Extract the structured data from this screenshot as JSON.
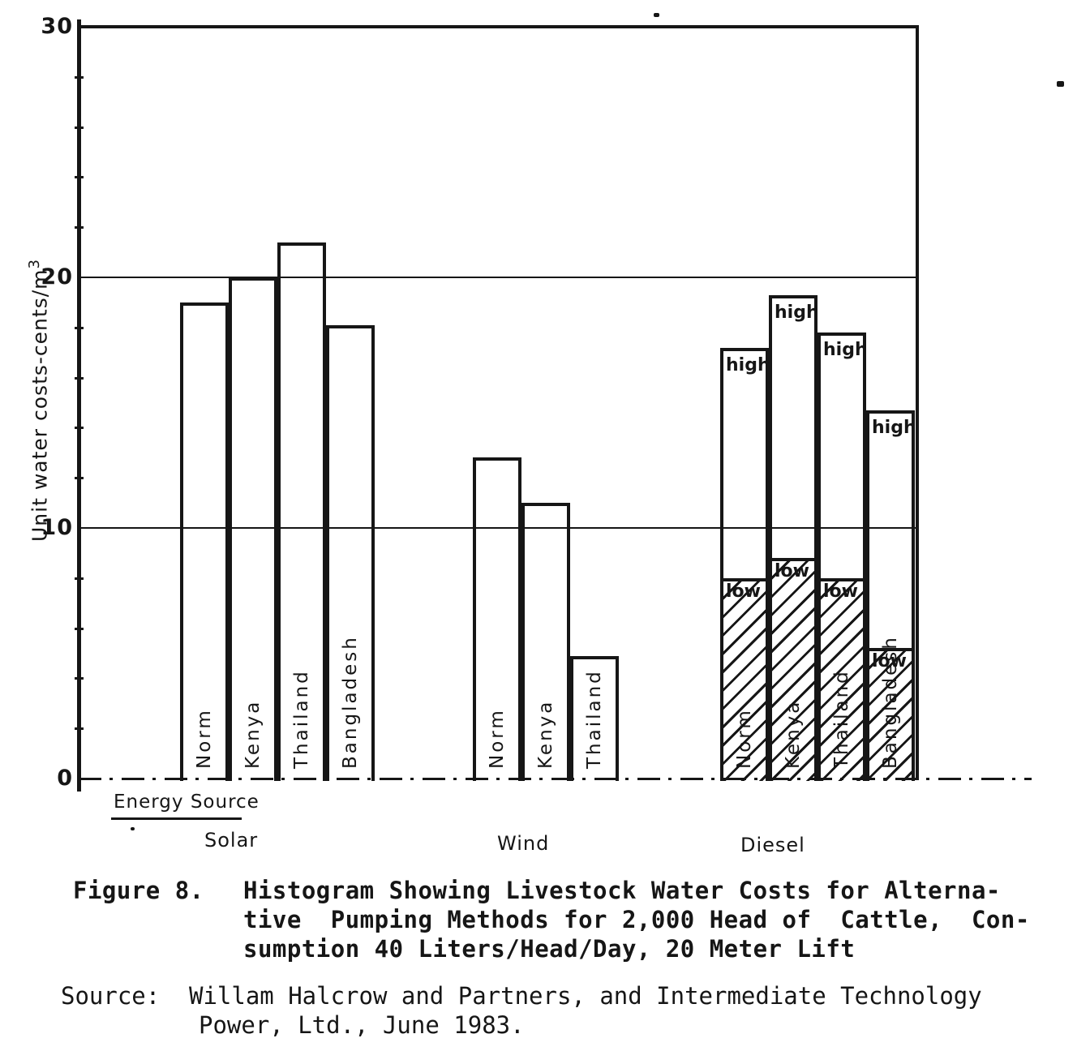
{
  "page": {
    "paper_color": "#ffffff",
    "ink_color": "#161616"
  },
  "figure": {
    "energy_source_label": "Energy Source",
    "caption": {
      "figure_label": "Figure 8.",
      "lines": [
        "Histogram Showing Livestock Water Costs for Alterna-",
        "tive  Pumping Methods for 2,000 Head of  Cattle,  Con-",
        "sumption 40 Liters/Head/Day, 20 Meter Lift"
      ]
    },
    "source": {
      "label": "Source:",
      "lines": [
        "Willam Halcrow and Partners, and Intermediate Technology",
        "Power, Ltd., June 1983."
      ]
    }
  },
  "chart_data": {
    "type": "bar",
    "title": "Figure 8. Histogram Showing Livestock Water Costs for Alternative Pumping Methods for 2,000 Head of Cattle, Consumption 40 Liters/Head/Day, 20 Meter Lift",
    "ylabel": "Unit water costs-cents/m",
    "ylabel_superscript": "3",
    "xlabel": "Energy Source",
    "ylim": [
      0,
      30
    ],
    "yticks": [
      0,
      10,
      20,
      30
    ],
    "minor_tick_step": 2,
    "grid": "horizontal lines at 10, 20, 30; dash-dot baseline at 0",
    "legend": "none",
    "annotations": {
      "high_label": "high",
      "low_label": "low",
      "low_section_fill": "diagonal-hatch"
    },
    "groups": [
      {
        "label": "Solar",
        "bars": [
          {
            "category": "Norm",
            "value": 19.0
          },
          {
            "category": "Kenya",
            "value": 20.0
          },
          {
            "category": "Thailand",
            "value": 21.4
          },
          {
            "category": "Bangladesh",
            "value": 18.1
          }
        ]
      },
      {
        "label": "Wind",
        "bars": [
          {
            "category": "Norm",
            "value": 12.8
          },
          {
            "category": "Kenya",
            "value": 11.0
          },
          {
            "category": "Thailand",
            "value": 4.9
          }
        ]
      },
      {
        "label": "Diesel",
        "style": "high-low range, hatched low section",
        "bars": [
          {
            "category": "Norm",
            "high": 17.2,
            "low": 8.1
          },
          {
            "category": "Kenya",
            "high": 19.3,
            "low": 8.9
          },
          {
            "category": "Thailand",
            "high": 17.8,
            "low": 8.1
          },
          {
            "category": "Bangladesh",
            "high": 14.7,
            "low": 5.3
          }
        ]
      }
    ]
  }
}
